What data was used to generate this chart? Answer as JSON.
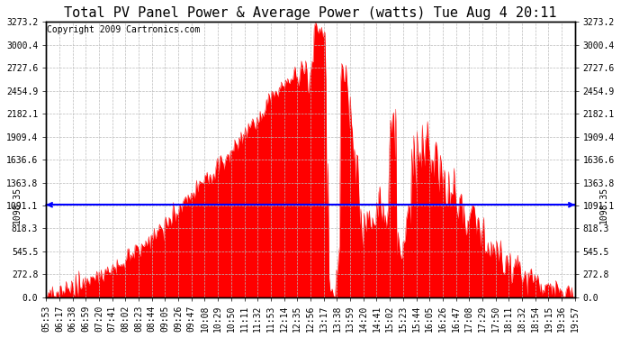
{
  "title": "Total PV Panel Power & Average Power (watts) Tue Aug 4 20:11",
  "copyright": "Copyright 2009 Cartronics.com",
  "average_power": 1098.35,
  "y_max": 3273.2,
  "y_ticks": [
    0.0,
    272.8,
    545.5,
    818.3,
    1091.1,
    1363.8,
    1636.6,
    1909.4,
    2182.1,
    2454.9,
    2727.6,
    3000.4,
    3273.2
  ],
  "x_labels": [
    "05:53",
    "06:17",
    "06:38",
    "06:59",
    "07:20",
    "07:41",
    "08:02",
    "08:23",
    "08:44",
    "09:05",
    "09:26",
    "09:47",
    "10:08",
    "10:29",
    "10:50",
    "11:11",
    "11:32",
    "11:53",
    "12:14",
    "12:35",
    "12:56",
    "13:17",
    "13:38",
    "13:59",
    "14:20",
    "14:41",
    "15:02",
    "15:23",
    "15:44",
    "16:05",
    "16:26",
    "16:47",
    "17:08",
    "17:29",
    "17:50",
    "18:11",
    "18:32",
    "18:54",
    "19:15",
    "19:36",
    "19:57"
  ],
  "bg_color": "#ffffff",
  "plot_bg_color": "#ffffff",
  "fill_color": "#ff0000",
  "line_color": "#ff0000",
  "avg_line_color": "#0000ff",
  "grid_color": "#bbbbbb",
  "border_color": "#000000",
  "title_fontsize": 11,
  "copyright_fontsize": 7,
  "tick_fontsize": 7,
  "avg_label": "1098.35",
  "figsize": [
    6.9,
    3.75
  ],
  "dpi": 100
}
